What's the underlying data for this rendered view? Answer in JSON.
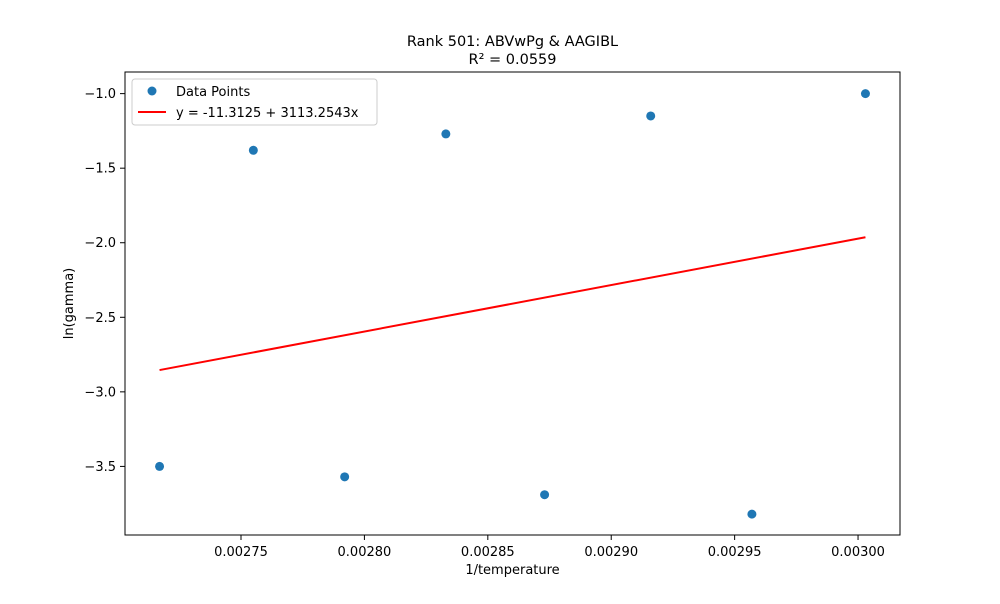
{
  "chart_data": {
    "type": "scatter",
    "title": "Rank 501: ABVwPg & AAGIBL",
    "subtitle": "R² = 0.0559",
    "xlabel": "1/temperature",
    "ylabel": "ln(gamma)",
    "xlim": [
      0.002703,
      0.003017
    ],
    "ylim": [
      -3.96,
      -0.855
    ],
    "x_ticks": [
      0.00275,
      0.0028,
      0.00285,
      0.0029,
      0.00295,
      0.003
    ],
    "x_tick_labels": [
      "0.00275",
      "0.00280",
      "0.00285",
      "0.00290",
      "0.00295",
      "0.00300"
    ],
    "y_ticks": [
      -3.5,
      -3.0,
      -2.5,
      -2.0,
      -1.5,
      -1.0
    ],
    "y_tick_labels": [
      "−3.5",
      "−3.0",
      "−2.5",
      "−2.0",
      "−1.5",
      "−1.0"
    ],
    "grid": false,
    "legend_position": "top-left",
    "series": [
      {
        "name": "Data Points",
        "kind": "scatter",
        "color": "#1f77b4",
        "x": [
          0.002717,
          0.002755,
          0.002792,
          0.002833,
          0.002873,
          0.002916,
          0.002957,
          0.003003
        ],
        "y": [
          -3.5,
          -1.38,
          -3.57,
          -1.27,
          -3.69,
          -1.15,
          -3.82,
          -1.0
        ]
      },
      {
        "name": "y = -11.3125 + 3113.2543x",
        "kind": "line",
        "color": "#ff0000",
        "x": [
          0.002717,
          0.003003
        ],
        "y": [
          -2.854,
          -1.963
        ]
      }
    ]
  }
}
